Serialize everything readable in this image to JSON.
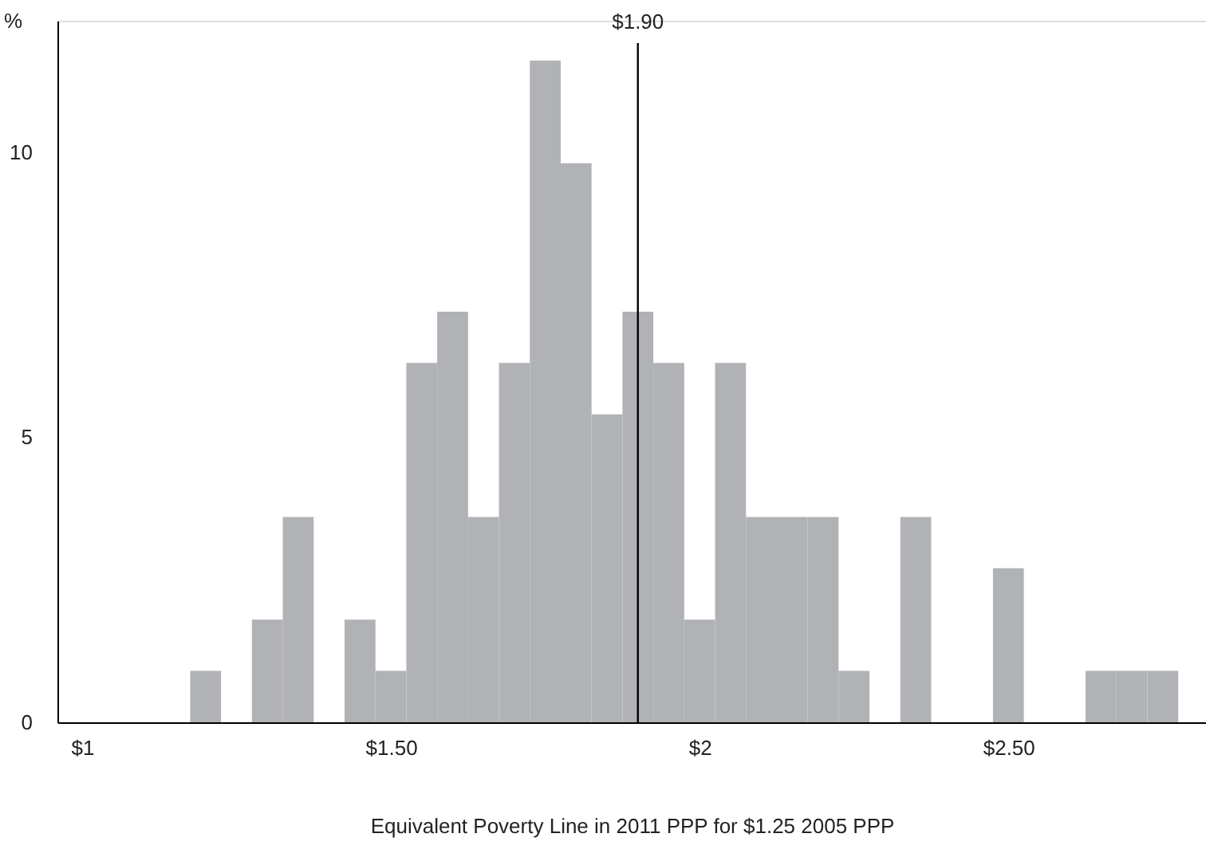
{
  "chart_data": {
    "type": "histogram",
    "xlabel": "Equivalent Poverty Line in 2011 PPP for $1.25 2005 PPP",
    "ylabel": "%",
    "bins": [
      1.175,
      1.225,
      1.275,
      1.325,
      1.375,
      1.425,
      1.475,
      1.525,
      1.575,
      1.625,
      1.675,
      1.725,
      1.775,
      1.825,
      1.875,
      1.925,
      1.975,
      2.025,
      2.075,
      2.125,
      2.175,
      2.225,
      2.275,
      2.325,
      2.375,
      2.425,
      2.475,
      2.525,
      2.575,
      2.625,
      2.675,
      2.725,
      2.775
    ],
    "values": [
      0.9,
      0,
      1.8,
      3.6,
      0,
      1.8,
      0.9,
      6.3,
      7.2,
      3.6,
      6.3,
      11.6,
      9.8,
      5.4,
      7.2,
      6.3,
      1.8,
      6.3,
      3.6,
      3.6,
      3.6,
      0.9,
      0,
      3.6,
      0,
      0,
      2.7,
      0,
      0,
      0.9,
      0.9,
      0.9
    ],
    "color": "#b1b2b5",
    "xlim": [
      0.96,
      2.82
    ],
    "xticks": [
      {
        "value": 1,
        "label": "$1"
      },
      {
        "value": 1.5,
        "label": "$1.50"
      },
      {
        "value": 2,
        "label": "$2"
      },
      {
        "value": 2.5,
        "label": "$2.50"
      }
    ],
    "ylim": [
      0,
      12.3
    ],
    "yticks": [
      0,
      5,
      10
    ],
    "ref_lines": [
      {
        "axis": "x",
        "value": 1.9,
        "label": "$1.90",
        "color": "#000000"
      }
    ],
    "grid": false
  }
}
